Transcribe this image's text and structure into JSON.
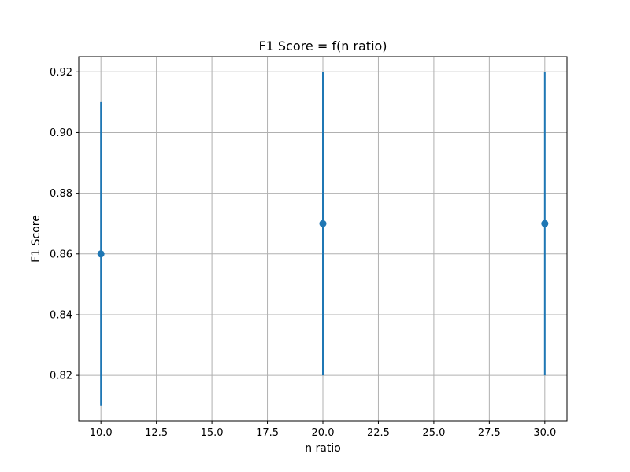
{
  "chart_data": {
    "type": "scatter",
    "title": "F1 Score = f(n ratio)",
    "xlabel": "n ratio",
    "ylabel": "F1 Score",
    "xlim": [
      9.0,
      31.0
    ],
    "ylim": [
      0.805,
      0.925
    ],
    "xticks": [
      10.0,
      12.5,
      15.0,
      17.5,
      20.0,
      22.5,
      25.0,
      27.5,
      30.0
    ],
    "xtick_labels": [
      "10.0",
      "12.5",
      "15.0",
      "17.5",
      "20.0",
      "22.5",
      "25.0",
      "27.5",
      "30.0"
    ],
    "yticks": [
      0.82,
      0.84,
      0.86,
      0.88,
      0.9,
      0.92
    ],
    "ytick_labels": [
      "0.82",
      "0.84",
      "0.86",
      "0.88",
      "0.90",
      "0.92"
    ],
    "grid": true,
    "series": [
      {
        "x": [
          10,
          20,
          30
        ],
        "y": [
          0.86,
          0.87,
          0.87
        ],
        "yerr_low": [
          0.81,
          0.82,
          0.82
        ],
        "yerr_high": [
          0.91,
          0.92,
          0.92
        ],
        "color": "#1f77b4"
      }
    ]
  }
}
